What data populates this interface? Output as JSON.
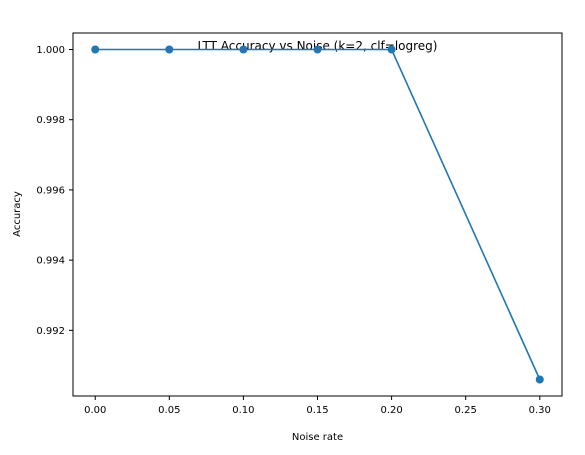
{
  "chart_data": {
    "type": "line",
    "title": "LTT Accuracy vs Noise (k=2, clf=logreg)",
    "xlabel": "Noise rate",
    "ylabel": "Accuracy",
    "x": [
      0.0,
      0.05,
      0.1,
      0.15,
      0.2,
      0.3
    ],
    "series": [
      {
        "values": [
          1.0,
          1.0,
          1.0,
          1.0,
          1.0,
          0.9906
        ]
      }
    ],
    "x_ticks": [
      "0.00",
      "0.05",
      "0.10",
      "0.15",
      "0.20",
      "0.25",
      "0.30"
    ],
    "y_ticks": [
      "0.992",
      "0.994",
      "0.996",
      "0.998",
      "1.000"
    ],
    "xlim": [
      -0.015,
      0.315
    ],
    "ylim": [
      0.99013,
      1.00047
    ],
    "grid": false,
    "line_color": "#1f77b4",
    "marker": "circle"
  }
}
